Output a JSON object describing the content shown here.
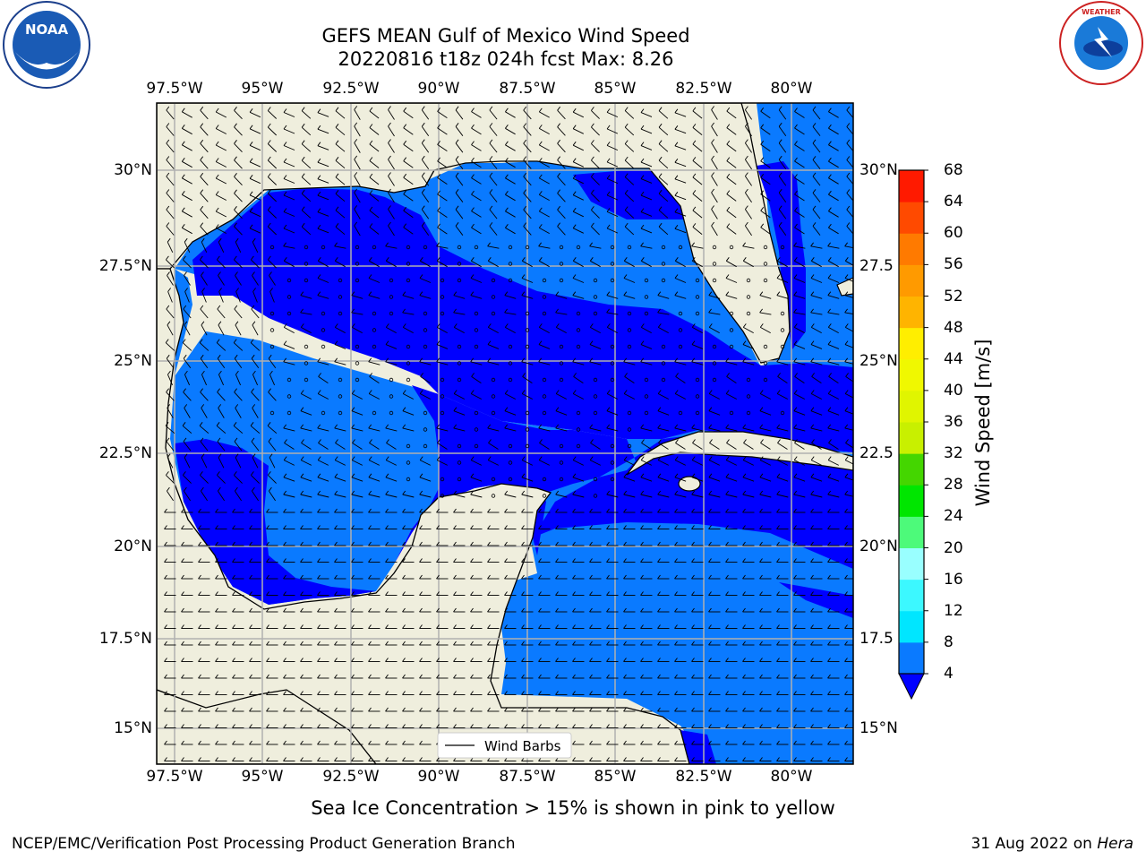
{
  "title_line1": "GEFS MEAN Gulf of Mexico Wind Speed",
  "title_line2": "20220816 t18z 024h fcst   Max: 8.26",
  "lon_ticks": [
    "97.5°W",
    "95°W",
    "92.5°W",
    "90°W",
    "87.5°W",
    "85°W",
    "82.5°W",
    "80°W"
  ],
  "lat_ticks": [
    "30°N",
    "27.5°N",
    "25°N",
    "22.5°N",
    "20°N",
    "17.5°N",
    "15°N"
  ],
  "lat_ticks_right": [
    "30°N",
    "27.5",
    "25°N",
    "22.5",
    "20°N",
    "17.5",
    "15°N"
  ],
  "map_extent": {
    "lon": [
      -98.0,
      -78.2
    ],
    "lat": [
      14.0,
      31.8
    ]
  },
  "legend_label": "Wind Barbs",
  "colorbar": {
    "label": "Wind Speed [m/s]",
    "ticks": [
      "68",
      "64",
      "60",
      "56",
      "52",
      "48",
      "44",
      "40",
      "36",
      "32",
      "28",
      "24",
      "20",
      "16",
      "12",
      "8",
      "4"
    ],
    "bins": [
      {
        "range": "4-8",
        "color": "#0a7aff"
      },
      {
        "range": "8-12",
        "color": "#00e6ff"
      },
      {
        "range": "12-16",
        "color": "#3cf8ff"
      },
      {
        "range": "16-20",
        "color": "#99ffff"
      },
      {
        "range": "20-24",
        "color": "#4dfa7a"
      },
      {
        "range": "24-28",
        "color": "#00e600"
      },
      {
        "range": "28-32",
        "color": "#44d600"
      },
      {
        "range": "32-36",
        "color": "#c8f000"
      },
      {
        "range": "36-40",
        "color": "#e0f500"
      },
      {
        "range": "40-44",
        "color": "#f0f800"
      },
      {
        "range": "44-48",
        "color": "#ffee00"
      },
      {
        "range": "48-52",
        "color": "#ffb400"
      },
      {
        "range": "52-56",
        "color": "#ff9a00"
      },
      {
        "range": "56-60",
        "color": "#ff7a00"
      },
      {
        "range": "60-64",
        "color": "#ff4a00"
      },
      {
        "range": "64-68",
        "color": "#ff1a00"
      }
    ],
    "under_color": "#0000ff"
  },
  "colors": {
    "land": "#efeedd",
    "low_wind": "#0000ff",
    "mid_wind": "#0a7aff"
  },
  "note": "Sea Ice Concentration > 15% is shown in pink to yellow",
  "footer_left": "NCEP/EMC/Verification Post Processing Product Generation Branch",
  "footer_right_date": "31 Aug 2022 on ",
  "footer_right_host": "Hera",
  "logos": {
    "left": "NOAA",
    "right": "NATIONAL WEATHER SERVICE"
  }
}
